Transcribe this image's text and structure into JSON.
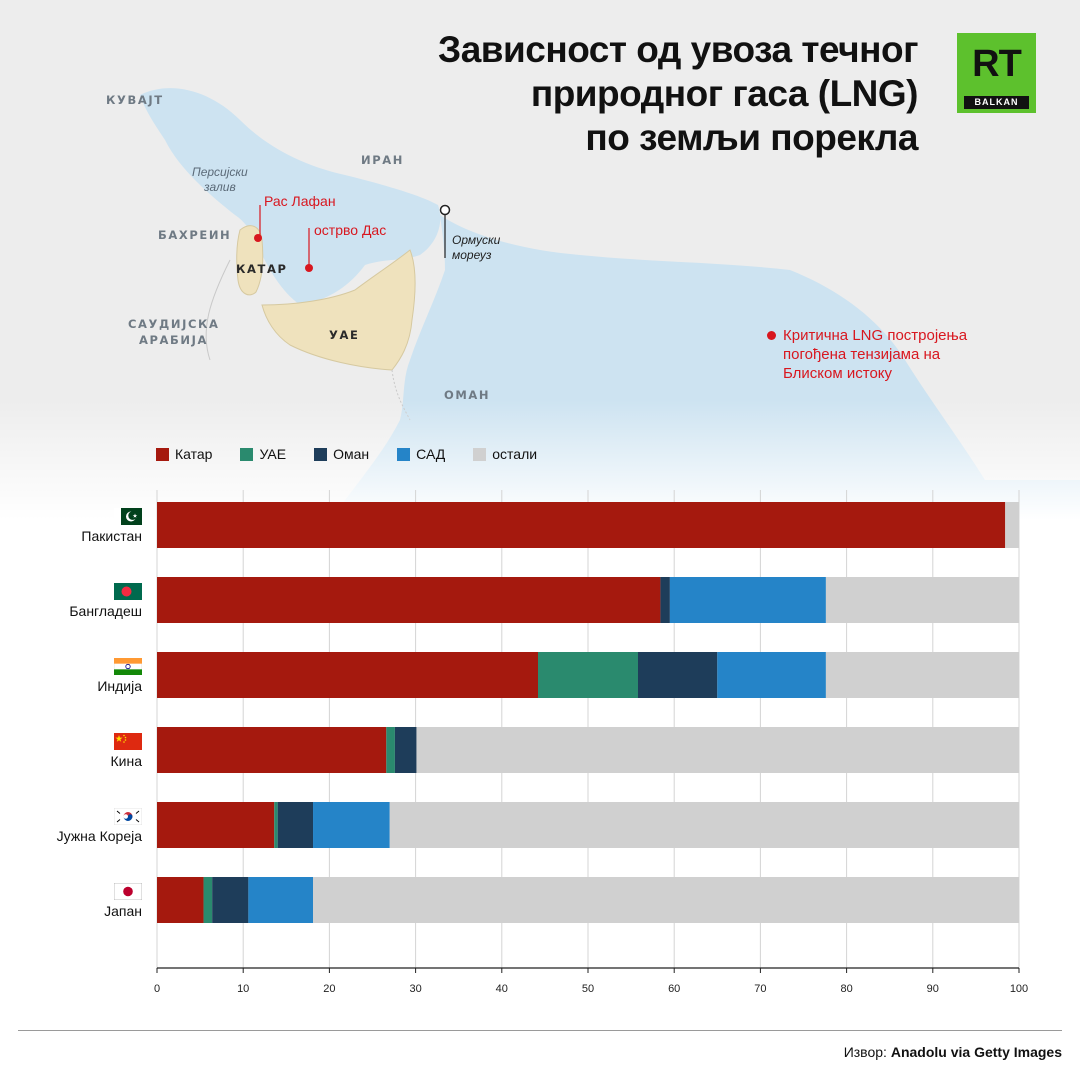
{
  "title_lines": [
    "Зависност од увоза течног",
    "природног гаса (LNG)",
    "по земљи порекла"
  ],
  "logo": {
    "text": "RT",
    "sub": "BALKAN",
    "color": "#5dc12d"
  },
  "map": {
    "countries": {
      "kuwait": "КУВАЈТ",
      "iran": "ИРАН",
      "bahrain": "БАХРЕИН",
      "qatar": "КАТАР",
      "saudi_1": "САУДИЈСКА",
      "saudi_2": "АРАБИЈА",
      "uae": "УАЕ",
      "oman": "ОМАН"
    },
    "gulf_1": "Персијски",
    "gulf_2": "залив",
    "ras_laffan": "Рас Лафан",
    "das_island": "острво Дас",
    "hormuz_1": "Ормуски",
    "hormuz_2": "мореуз",
    "critical_1": "Критична LNG постројења",
    "critical_2": "погођена тензијама на",
    "critical_3": "Блиском истоку"
  },
  "legend": [
    {
      "label": "Катар",
      "color": "#a5190e"
    },
    {
      "label": "УАЕ",
      "color": "#2a8a6e"
    },
    {
      "label": "Оман",
      "color": "#1e3d5a"
    },
    {
      "label": "САД",
      "color": "#2584c8"
    },
    {
      "label": "остали",
      "color": "#d0d0d0"
    }
  ],
  "chart_data": {
    "type": "bar",
    "orientation": "horizontal",
    "stacked": true,
    "categories": [
      "Пакистан",
      "Бангладеш",
      "Индија",
      "Кина",
      "Јужна Кореја",
      "Јапан"
    ],
    "series": [
      {
        "name": "Катар",
        "color": "#a5190e",
        "values": [
          98.4,
          58.4,
          44.2,
          26.6,
          13.6,
          5.4
        ]
      },
      {
        "name": "УАЕ",
        "color": "#2a8a6e",
        "values": [
          0,
          0,
          11.6,
          1.0,
          0.4,
          1.0
        ]
      },
      {
        "name": "Оман",
        "color": "#1e3d5a",
        "values": [
          0,
          1.1,
          9.2,
          2.5,
          4.1,
          4.2
        ]
      },
      {
        "name": "САД",
        "color": "#2584c8",
        "values": [
          0,
          18.1,
          12.6,
          0,
          8.9,
          7.5
        ]
      },
      {
        "name": "остали",
        "color": "#d0d0d0",
        "values": [
          1.6,
          22.4,
          22.4,
          69.9,
          73.0,
          81.9
        ]
      }
    ],
    "xlim": [
      0,
      100
    ],
    "xticks": [
      "0",
      "10",
      "20",
      "30",
      "40",
      "50",
      "60",
      "70",
      "80",
      "90",
      "100"
    ],
    "grid": true
  },
  "source_prefix": "Извор: ",
  "source_name": "Anadolu via Getty Images"
}
